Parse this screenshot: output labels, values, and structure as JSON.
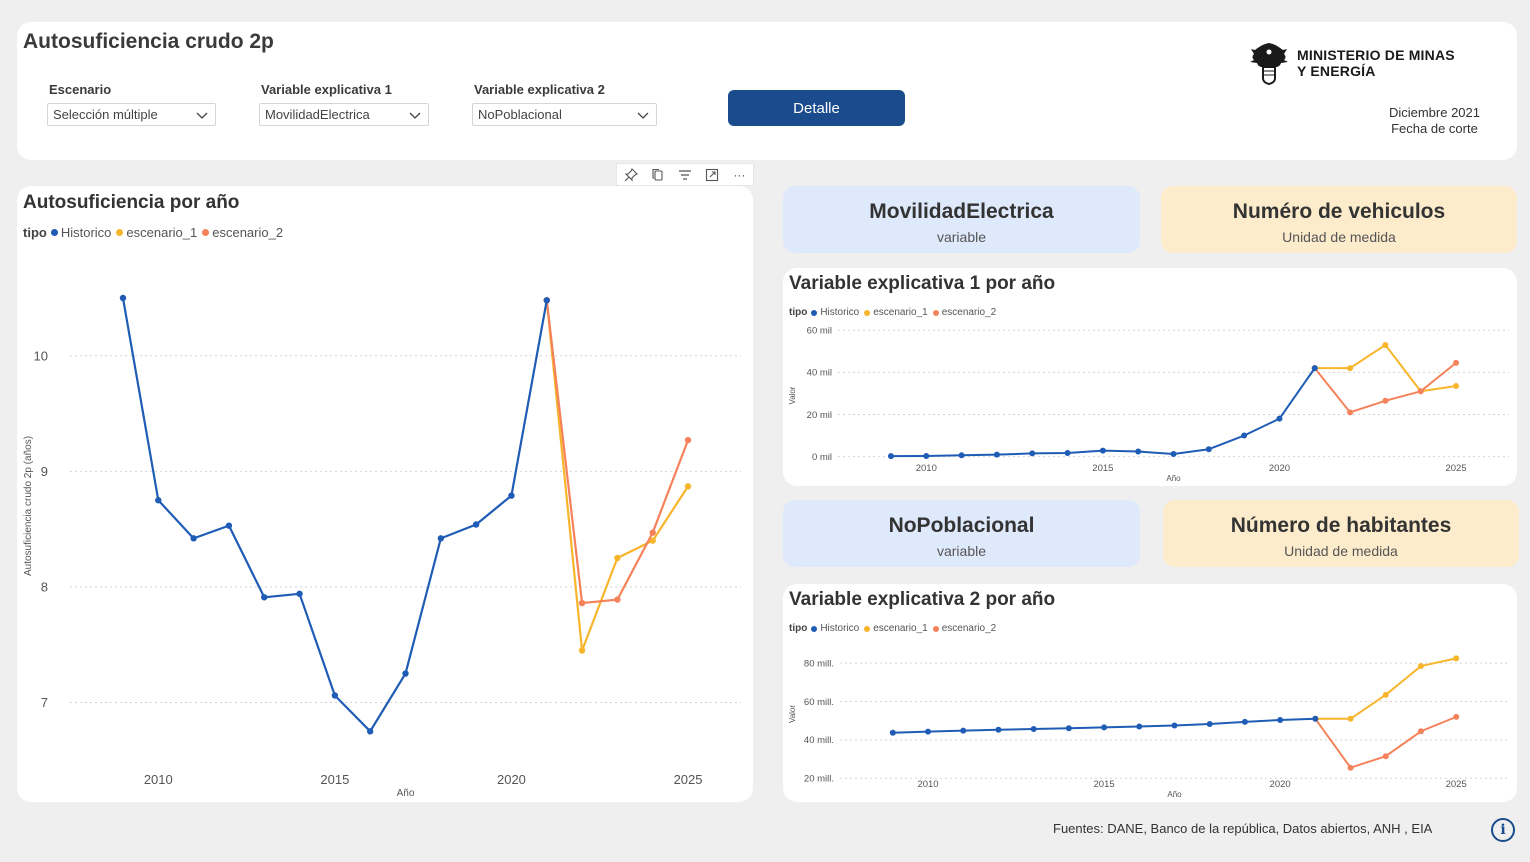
{
  "header": {
    "title": "Autosuficiencia crudo 2p",
    "logo_line1": "MINISTERIO DE MINAS",
    "logo_line2": "Y ENERGÍA",
    "date_value": "Diciembre 2021",
    "date_label": "Fecha de corte",
    "detail_button": "Detalle"
  },
  "filters": [
    {
      "label": "Escenario",
      "value": "Selección múltiple"
    },
    {
      "label": "Variable explicativa 1",
      "value": "MovilidadElectrica"
    },
    {
      "label": "Variable explicativa 2",
      "value": "NoPoblacional"
    }
  ],
  "toolbar": {
    "icons": [
      "pin-icon",
      "copy-icon",
      "filter-icon",
      "focus-mode-icon",
      "more-options-icon"
    ],
    "more_label": "···"
  },
  "colors": {
    "historico": "#1f5cb5",
    "escenario_1": "#f7b52c",
    "escenario_2": "#f5825a",
    "accent": "#1a4b8c"
  },
  "kpis": {
    "var1": {
      "value": "MovilidadElectrica",
      "label": "variable"
    },
    "unit1": {
      "value": "Numéro de vehiculos",
      "label": "Unidad de medida"
    },
    "var2": {
      "value": "NoPoblacional",
      "label": "variable"
    },
    "unit2": {
      "value": "Número de habitantes",
      "label": "Unidad de medida"
    }
  },
  "footer": {
    "sources": "Fuentes: DANE, Banco de la  república, Datos abiertos, ANH , EIA"
  },
  "chart_data": [
    {
      "id": "main",
      "type": "line",
      "title": "Autosuficiencia por año",
      "legend_title": "tipo",
      "xlabel": "Año",
      "ylabel": "Autosuficiencia crudo 2p (años)",
      "xlim": [
        2007.5,
        2026.5
      ],
      "ylim": [
        6.45,
        10.95
      ],
      "xticks": [
        2010,
        2015,
        2020,
        2025
      ],
      "yticks": [
        7,
        8,
        9,
        10
      ],
      "ytick_labels": [
        "7",
        "8",
        "9",
        "10"
      ],
      "grid": true,
      "legend_position": "top-left",
      "series": [
        {
          "name": "Historico",
          "x": [
            2009,
            2010,
            2011,
            2012,
            2013,
            2014,
            2015,
            2016,
            2017,
            2018,
            2019,
            2020,
            2021
          ],
          "values": [
            10.5,
            8.75,
            8.42,
            8.53,
            7.91,
            7.94,
            7.06,
            6.75,
            7.25,
            8.42,
            8.54,
            8.79,
            10.48
          ]
        },
        {
          "name": "escenario_1",
          "x": [
            2021,
            2022,
            2023,
            2024,
            2025
          ],
          "values": [
            10.48,
            7.45,
            8.25,
            8.4,
            8.87
          ]
        },
        {
          "name": "escenario_2",
          "x": [
            2021,
            2022,
            2023,
            2024,
            2025
          ],
          "values": [
            10.48,
            7.86,
            7.89,
            8.47,
            9.27
          ]
        }
      ]
    },
    {
      "id": "var1",
      "type": "line",
      "title": "Variable explicativa 1 por año",
      "legend_title": "tipo",
      "xlabel": "Año",
      "ylabel": "Valor",
      "xlim": [
        2007.5,
        2026.5
      ],
      "ylim": [
        -4000,
        62000
      ],
      "xticks": [
        2010,
        2015,
        2020,
        2025
      ],
      "yticks": [
        0,
        20000,
        40000,
        60000
      ],
      "ytick_labels": [
        "0 mil",
        "20 mil",
        "40 mil",
        "60 mil"
      ],
      "grid": true,
      "legend_position": "top-left",
      "series": [
        {
          "name": "Historico",
          "x": [
            2009,
            2010,
            2011,
            2012,
            2013,
            2014,
            2015,
            2016,
            2017,
            2018,
            2019,
            2020,
            2021
          ],
          "values": [
            200,
            300,
            600,
            900,
            1500,
            1700,
            2800,
            2400,
            1200,
            3500,
            10000,
            18000,
            42000
          ]
        },
        {
          "name": "escenario_1",
          "x": [
            2021,
            2022,
            2023,
            2024,
            2025
          ],
          "values": [
            42000,
            42000,
            53000,
            31000,
            33500
          ]
        },
        {
          "name": "escenario_2",
          "x": [
            2021,
            2022,
            2023,
            2024,
            2025
          ],
          "values": [
            42000,
            21000,
            26500,
            31000,
            44500
          ]
        }
      ]
    },
    {
      "id": "var2",
      "type": "line",
      "title": "Variable explicativa 2 por año",
      "legend_title": "tipo",
      "xlabel": "Año",
      "ylabel": "Valor",
      "xlim": [
        2007.5,
        2026.5
      ],
      "ylim": [
        17000000,
        90000000
      ],
      "xticks": [
        2010,
        2015,
        2020,
        2025
      ],
      "yticks": [
        20000000,
        40000000,
        60000000,
        80000000
      ],
      "ytick_labels": [
        "20 mill.",
        "40 mill.",
        "60 mill.",
        "80 mill."
      ],
      "grid": true,
      "legend_position": "top-left",
      "series": [
        {
          "name": "Historico",
          "x": [
            2009,
            2010,
            2011,
            2012,
            2013,
            2014,
            2015,
            2016,
            2017,
            2018,
            2019,
            2020,
            2021
          ],
          "values": [
            43700000,
            44300000,
            44800000,
            45300000,
            45700000,
            46100000,
            46500000,
            47000000,
            47500000,
            48300000,
            49400000,
            50400000,
            51000000
          ]
        },
        {
          "name": "escenario_1",
          "x": [
            2021,
            2022,
            2023,
            2024,
            2025
          ],
          "values": [
            51000000,
            51000000,
            63500000,
            78500000,
            82500000
          ]
        },
        {
          "name": "escenario_2",
          "x": [
            2021,
            2022,
            2023,
            2024,
            2025
          ],
          "values": [
            51000000,
            25500000,
            31500000,
            44500000,
            52000000
          ]
        }
      ]
    }
  ]
}
